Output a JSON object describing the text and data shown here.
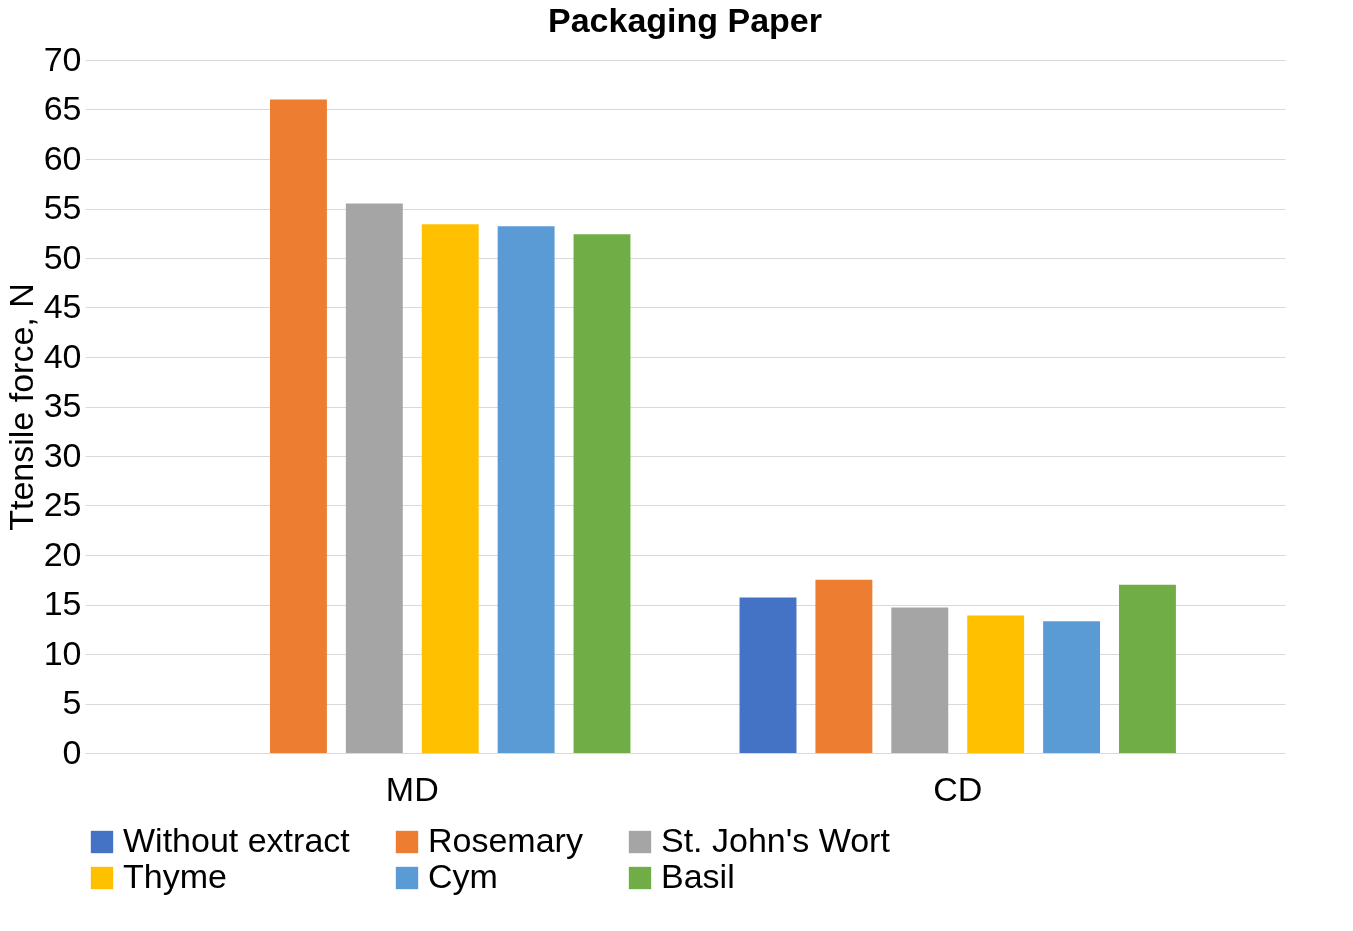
{
  "chart_data": {
    "type": "bar",
    "title": "Packaging Paper",
    "ylabel": "Ttensile force, N",
    "categories": [
      "MD",
      "CD"
    ],
    "series": [
      {
        "name": "Without extract",
        "color": "#4472c4",
        "values": [
          null,
          15.7
        ]
      },
      {
        "name": "Rosemary",
        "color": "#ed7d31",
        "values": [
          66,
          17.5
        ]
      },
      {
        "name": "St. John's Wort",
        "color": "#a5a5a5",
        "values": [
          55.5,
          14.7
        ]
      },
      {
        "name": "Thyme",
        "color": "#ffc000",
        "values": [
          53.4,
          13.9
        ]
      },
      {
        "name": "Cym",
        "color": "#5b9bd5",
        "values": [
          53.2,
          13.3
        ]
      },
      {
        "name": "Basil",
        "color": "#70ad47",
        "values": [
          52.4,
          17.0
        ]
      }
    ],
    "ylim": [
      0,
      70
    ],
    "yticks": [
      0,
      5,
      10,
      15,
      20,
      25,
      30,
      35,
      40,
      45,
      50,
      55,
      60,
      65,
      70
    ],
    "grid": "y",
    "legend": "bottom"
  }
}
